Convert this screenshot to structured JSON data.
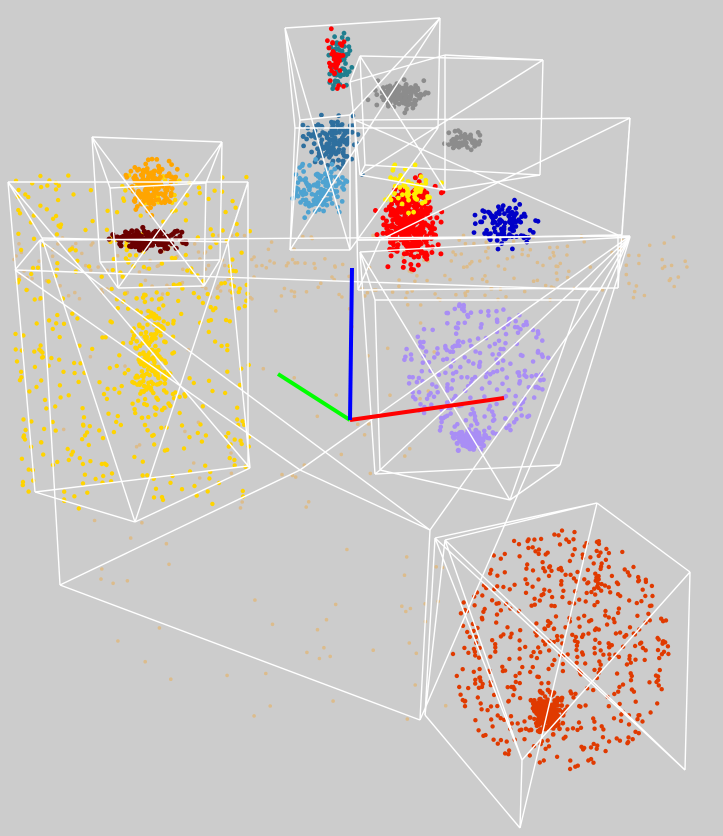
{
  "scene": {
    "kind": "3d point cloud with oriented bounding boxes",
    "background_color": "#cccccc",
    "box_color": "#ffffff",
    "axes": {
      "x_color": "#ff0000",
      "y_color": "#00ff00",
      "z_color": "#0000ff"
    },
    "clusters": [
      {
        "name": "floor-scatter",
        "color": "#dcbc8c"
      },
      {
        "name": "shelf-left-yellow",
        "color": "#ffd400"
      },
      {
        "name": "lamp-orange",
        "color": "#ffa500"
      },
      {
        "name": "dark-red-blob",
        "color": "#6b0000"
      },
      {
        "name": "red-object",
        "color": "#ff0000"
      },
      {
        "name": "steel-blue",
        "color": "#2e6f9e"
      },
      {
        "name": "light-blue",
        "color": "#4fa3d1"
      },
      {
        "name": "grey-top",
        "color": "#8c8c8c"
      },
      {
        "name": "blue-tail",
        "color": "#0000c8"
      },
      {
        "name": "yellow-accent",
        "color": "#ffee00"
      },
      {
        "name": "lavender-vase",
        "color": "#a98ef5"
      },
      {
        "name": "red-orange-sphere",
        "color": "#e03a00"
      },
      {
        "name": "teal-top",
        "color": "#1f7f8f"
      }
    ]
  }
}
